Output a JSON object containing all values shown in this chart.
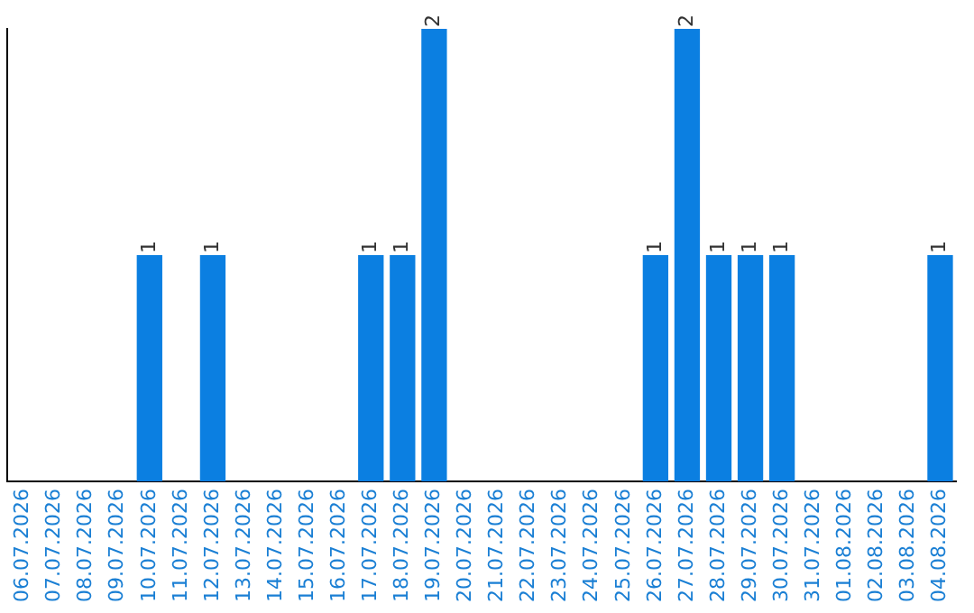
{
  "chart_data": {
    "type": "bar",
    "categories": [
      "06.07.2026",
      "07.07.2026",
      "08.07.2026",
      "09.07.2026",
      "10.07.2026",
      "11.07.2026",
      "12.07.2026",
      "13.07.2026",
      "14.07.2026",
      "15.07.2026",
      "16.07.2026",
      "17.07.2026",
      "18.07.2026",
      "19.07.2026",
      "20.07.2026",
      "21.07.2026",
      "22.07.2026",
      "23.07.2026",
      "24.07.2026",
      "25.07.2026",
      "26.07.2026",
      "27.07.2026",
      "28.07.2026",
      "29.07.2026",
      "30.07.2026",
      "31.07.2026",
      "01.08.2026",
      "02.08.2026",
      "03.08.2026",
      "04.08.2026"
    ],
    "values": [
      0,
      0,
      0,
      0,
      1,
      0,
      1,
      0,
      0,
      0,
      0,
      1,
      1,
      2,
      0,
      0,
      0,
      0,
      0,
      0,
      1,
      2,
      1,
      1,
      1,
      0,
      0,
      0,
      0,
      1
    ],
    "value_labels": [
      null,
      null,
      null,
      null,
      "1",
      null,
      "1",
      null,
      null,
      null,
      null,
      "1",
      "1",
      "2",
      null,
      null,
      null,
      null,
      null,
      null,
      "1",
      "2",
      "1",
      "1",
      "1",
      null,
      null,
      null,
      null,
      "1"
    ],
    "color": "#0b7fe1",
    "grid": false,
    "legend": false,
    "tick_labels": "x"
  }
}
